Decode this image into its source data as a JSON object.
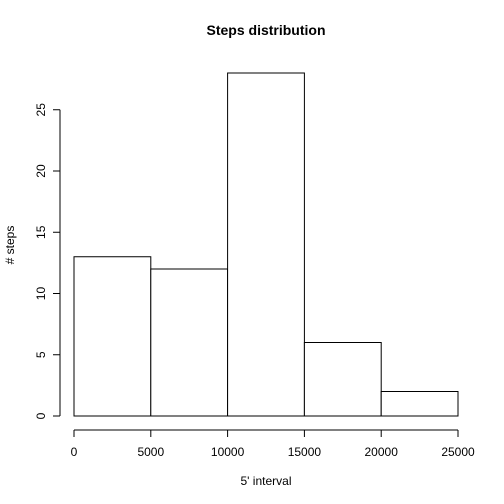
{
  "chart_data": {
    "type": "bar",
    "title": "Steps distribution",
    "xlabel": "5' interval",
    "ylabel": "# steps",
    "bins": [
      {
        "from": 0,
        "to": 5000,
        "value": 13
      },
      {
        "from": 5000,
        "to": 10000,
        "value": 12
      },
      {
        "from": 10000,
        "to": 15000,
        "value": 28
      },
      {
        "from": 15000,
        "to": 20000,
        "value": 6
      },
      {
        "from": 20000,
        "to": 25000,
        "value": 2
      }
    ],
    "xlim": [
      0,
      25000
    ],
    "ylim": [
      0,
      28
    ],
    "xticks": [
      0,
      5000,
      10000,
      15000,
      20000,
      25000
    ],
    "yticks": [
      0,
      5,
      10,
      15,
      20,
      25
    ],
    "xtick_labels": [
      "0",
      "5000",
      "10000",
      "15000",
      "20000",
      "25000"
    ],
    "ytick_labels": [
      "0",
      "5",
      "10",
      "15",
      "20",
      "25"
    ],
    "grid": false,
    "colors": {
      "bar_fill": "#ffffff",
      "bar_stroke": "#000000"
    }
  }
}
